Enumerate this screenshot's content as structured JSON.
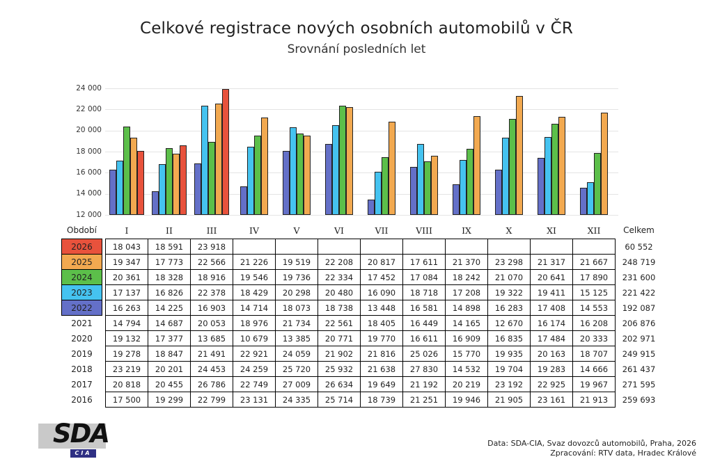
{
  "title": "Celkové registrace nových osobních automobilů v ČR",
  "subtitle": "Srovnání posledních let",
  "chart_data": {
    "type": "bar",
    "title": "Celkové registrace nových osobních automobilů v ČR",
    "categories": [
      "I",
      "II",
      "III",
      "IV",
      "V",
      "VI",
      "VII",
      "VIII",
      "IX",
      "X",
      "XI",
      "XII"
    ],
    "series": [
      {
        "name": "2022",
        "color": "#6470c8",
        "values": [
          16263,
          14225,
          16903,
          14714,
          18073,
          18738,
          13448,
          16581,
          14898,
          16283,
          17408,
          14553
        ]
      },
      {
        "name": "2023",
        "color": "#45c3f0",
        "values": [
          17137,
          16826,
          22378,
          18429,
          20298,
          20480,
          16090,
          18718,
          17208,
          19322,
          19411,
          15125
        ]
      },
      {
        "name": "2024",
        "color": "#5cbf4a",
        "values": [
          20361,
          18328,
          18916,
          19546,
          19736,
          22334,
          17452,
          17084,
          18242,
          21070,
          20641,
          17890
        ]
      },
      {
        "name": "2025",
        "color": "#f2a950",
        "values": [
          19347,
          17773,
          22566,
          21226,
          19519,
          22208,
          20817,
          17611,
          21370,
          23298,
          21317,
          21667
        ]
      },
      {
        "name": "2026",
        "color": "#e8523c",
        "values": [
          18043,
          18591,
          23918,
          null,
          null,
          null,
          null,
          null,
          null,
          null,
          null,
          null
        ]
      }
    ],
    "xlabel": "Období",
    "ylabel": "",
    "ylim": [
      12000,
      24000
    ],
    "ytick_step": 2000,
    "grid": true,
    "legend_position": "table-left-column"
  },
  "table": {
    "period_label": "Období",
    "total_label": "Celkem",
    "months": [
      "I",
      "II",
      "III",
      "IV",
      "V",
      "VI",
      "VII",
      "VIII",
      "IX",
      "X",
      "XI",
      "XII"
    ],
    "rows": [
      {
        "year": "2026",
        "color": "#e8523c",
        "values": [
          "18 043",
          "18 591",
          "23 918",
          "",
          "",
          "",
          "",
          "",
          "",
          "",
          "",
          ""
        ],
        "total": "60 552"
      },
      {
        "year": "2025",
        "color": "#f2a950",
        "values": [
          "19 347",
          "17 773",
          "22 566",
          "21 226",
          "19 519",
          "22 208",
          "20 817",
          "17 611",
          "21 370",
          "23 298",
          "21 317",
          "21 667"
        ],
        "total": "248 719"
      },
      {
        "year": "2024",
        "color": "#5cbf4a",
        "values": [
          "20 361",
          "18 328",
          "18 916",
          "19 546",
          "19 736",
          "22 334",
          "17 452",
          "17 084",
          "18 242",
          "21 070",
          "20 641",
          "17 890"
        ],
        "total": "231 600"
      },
      {
        "year": "2023",
        "color": "#45c3f0",
        "values": [
          "17 137",
          "16 826",
          "22 378",
          "18 429",
          "20 298",
          "20 480",
          "16 090",
          "18 718",
          "17 208",
          "19 322",
          "19 411",
          "15 125"
        ],
        "total": "221 422"
      },
      {
        "year": "2022",
        "color": "#6470c8",
        "values": [
          "16 263",
          "14 225",
          "16 903",
          "14 714",
          "18 073",
          "18 738",
          "13 448",
          "16 581",
          "14 898",
          "16 283",
          "17 408",
          "14 553"
        ],
        "total": "192 087"
      },
      {
        "year": "2021",
        "color": null,
        "values": [
          "14 794",
          "14 687",
          "20 053",
          "18 976",
          "21 734",
          "22 561",
          "18 405",
          "16 449",
          "14 165",
          "12 670",
          "16 174",
          "16 208"
        ],
        "total": "206 876"
      },
      {
        "year": "2020",
        "color": null,
        "values": [
          "19 132",
          "17 377",
          "13 685",
          "10 679",
          "13 385",
          "20 771",
          "19 770",
          "16 611",
          "16 909",
          "16 835",
          "17 484",
          "20 333"
        ],
        "total": "202 971"
      },
      {
        "year": "2019",
        "color": null,
        "values": [
          "19 278",
          "18 847",
          "21 491",
          "22 921",
          "24 059",
          "21 902",
          "21 816",
          "25 026",
          "15 770",
          "19 935",
          "20 163",
          "18 707"
        ],
        "total": "249 915"
      },
      {
        "year": "2018",
        "color": null,
        "values": [
          "23 219",
          "20 201",
          "24 453",
          "24 259",
          "25 720",
          "25 932",
          "21 638",
          "27 830",
          "14 532",
          "19 704",
          "19 283",
          "14 666"
        ],
        "total": "261 437"
      },
      {
        "year": "2017",
        "color": null,
        "values": [
          "20 818",
          "20 455",
          "26 786",
          "22 749",
          "27 009",
          "26 634",
          "19 649",
          "21 192",
          "20 219",
          "23 192",
          "22 925",
          "19 967"
        ],
        "total": "271 595"
      },
      {
        "year": "2016",
        "color": null,
        "values": [
          "17 500",
          "19 299",
          "22 799",
          "23 131",
          "24 335",
          "25 714",
          "18 739",
          "21 251",
          "19 946",
          "21 905",
          "23 161",
          "21 913"
        ],
        "total": "259 693"
      }
    ]
  },
  "footer": {
    "logo_main": "SDA",
    "logo_sub": "CIA",
    "source_line1": "Data: SDA-CIA, Svaz dovozců automobilů, Praha, 2026",
    "source_line2": "Zpracování: RTV data, Hradec Králové"
  },
  "colors": {
    "grid": "#e4e4e4",
    "bar_border": "#222222",
    "table_border": "#000000",
    "logo_gray": "#c9c9c9",
    "logo_navy": "#2f3084"
  }
}
